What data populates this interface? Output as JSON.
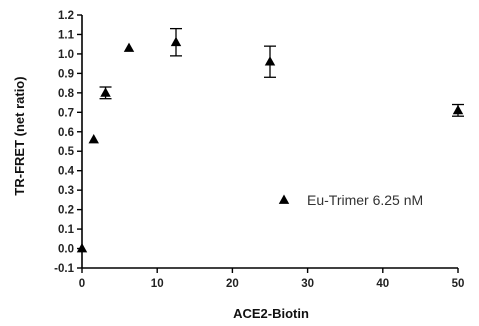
{
  "chart_data": {
    "type": "scatter",
    "xlabel": "ACE2-Biotin",
    "ylabel": "TR-FRET (net ratio)",
    "xlim": [
      0,
      50
    ],
    "ylim": [
      -0.1,
      1.2
    ],
    "x_ticks": [
      0,
      10,
      20,
      30,
      40,
      50
    ],
    "y_ticks": [
      -0.1,
      0.0,
      0.1,
      0.2,
      0.3,
      0.4,
      0.5,
      0.6,
      0.7,
      0.8,
      0.9,
      1.0,
      1.1,
      1.2
    ],
    "x_tick_labels": [
      "0",
      "10",
      "20",
      "30",
      "40",
      "50"
    ],
    "y_tick_labels": [
      "-0.1",
      "0.0",
      "0.1",
      "0.2",
      "0.3",
      "0.4",
      "0.5",
      "0.6",
      "0.7",
      "0.8",
      "0.9",
      "1.0",
      "1.1",
      "1.2"
    ],
    "grid": false,
    "legend_position": "right",
    "marker": "triangle",
    "marker_color": "#000000",
    "series": [
      {
        "name": "Eu-Trimer 6.25 nM",
        "points": [
          {
            "x": 0,
            "y": 0.0,
            "err": 0.0
          },
          {
            "x": 1.56,
            "y": 0.56,
            "err": 0.0
          },
          {
            "x": 3.13,
            "y": 0.8,
            "err": 0.03
          },
          {
            "x": 6.25,
            "y": 1.03,
            "err": 0.0
          },
          {
            "x": 12.5,
            "y": 1.06,
            "err": 0.07
          },
          {
            "x": 25,
            "y": 0.96,
            "err": 0.08
          },
          {
            "x": 50,
            "y": 0.71,
            "err": 0.03
          }
        ]
      }
    ]
  }
}
